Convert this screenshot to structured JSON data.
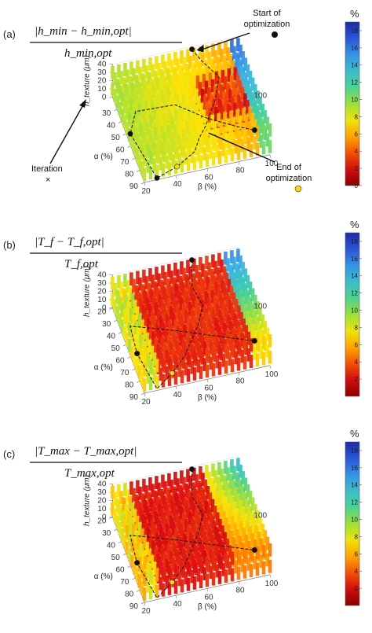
{
  "panels": [
    {
      "id": "a",
      "panel_label": "(a)",
      "formula": {
        "numerator": "|h_min − h_min,opt|",
        "denominator": "h_min,opt"
      },
      "pct_symbol": "%",
      "annotations": {
        "start": "Start of optimization",
        "end": "End of optimization",
        "iteration": "Iteration",
        "iteration_marker": "×"
      }
    },
    {
      "id": "b",
      "panel_label": "(b)",
      "formula": {
        "numerator": "|T_f − T_f,opt|",
        "denominator": "T_f,opt"
      },
      "pct_symbol": "%"
    },
    {
      "id": "c",
      "panel_label": "(c)",
      "formula": {
        "numerator": "|T_max − T_max,opt|",
        "denominator": "T_max,opt"
      },
      "pct_symbol": "%"
    }
  ],
  "chart_data": [
    {
      "type": "bar3d",
      "panel": "a",
      "xlabel": "β (%)",
      "ylabel": "α (%)",
      "zlabel": "h_texture (μm)",
      "x_ticks": [
        20,
        40,
        60,
        80,
        100
      ],
      "y_ticks": [
        30,
        40,
        50,
        60,
        70,
        80,
        90
      ],
      "z_ticks": [
        0,
        10,
        20,
        30,
        40
      ],
      "xlim": [
        20,
        100
      ],
      "ylim": [
        20,
        90
      ],
      "zlim": [
        0,
        40
      ],
      "colorbar": {
        "unit": "%",
        "ticks": [
          0,
          2,
          4,
          6,
          8,
          10,
          12,
          14,
          16,
          18
        ],
        "range": [
          0,
          19
        ]
      },
      "color_field": "relative deviation of h_min (%)",
      "start_point": {
        "beta": 70,
        "alpha": 25,
        "h": 40
      },
      "end_point_marker_color": "#f5d90a"
    },
    {
      "type": "bar3d",
      "panel": "b",
      "xlabel": "β (%)",
      "ylabel": "α (%)",
      "zlabel": "h_texture (μm)",
      "x_ticks": [
        20,
        40,
        60,
        80,
        100
      ],
      "y_ticks": [
        20,
        30,
        40,
        50,
        60,
        70,
        80,
        90
      ],
      "z_ticks": [
        0,
        10,
        20,
        30,
        40
      ],
      "xlim": [
        20,
        100
      ],
      "ylim": [
        20,
        90
      ],
      "zlim": [
        0,
        40
      ],
      "colorbar": {
        "unit": "%",
        "ticks": [
          2,
          4,
          6,
          8,
          10,
          12,
          14,
          16,
          18
        ],
        "range": [
          0,
          19
        ]
      },
      "color_field": "relative deviation of T_f (%)"
    },
    {
      "type": "bar3d",
      "panel": "c",
      "xlabel": "β (%)",
      "ylabel": "α (%)",
      "zlabel": "h_texture (μm)",
      "x_ticks": [
        20,
        40,
        60,
        80,
        100
      ],
      "y_ticks": [
        20,
        30,
        40,
        50,
        60,
        70,
        80,
        90
      ],
      "z_ticks": [
        0,
        10,
        20,
        30,
        40
      ],
      "xlim": [
        20,
        100
      ],
      "ylim": [
        20,
        90
      ],
      "zlim": [
        0,
        40
      ],
      "colorbar": {
        "unit": "%",
        "ticks": [
          2,
          4,
          6,
          8,
          10,
          12,
          14,
          16,
          18
        ],
        "range": [
          0,
          19
        ]
      },
      "color_field": "relative deviation of T_max (%)"
    }
  ]
}
